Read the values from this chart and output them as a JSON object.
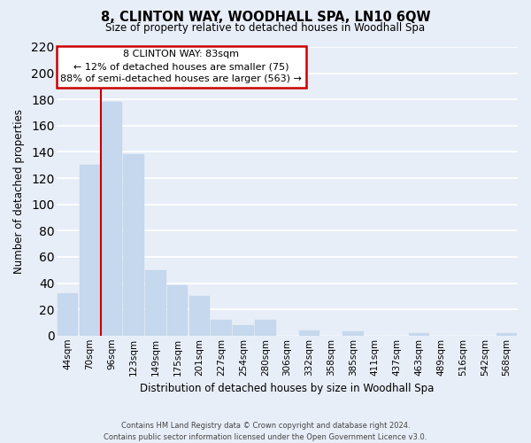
{
  "title": "8, CLINTON WAY, WOODHALL SPA, LN10 6QW",
  "subtitle": "Size of property relative to detached houses in Woodhall Spa",
  "xlabel": "Distribution of detached houses by size in Woodhall Spa",
  "ylabel": "Number of detached properties",
  "bar_color": "#c5d8ed",
  "bar_edge_color": "#c5d8ed",
  "categories": [
    "44sqm",
    "70sqm",
    "96sqm",
    "123sqm",
    "149sqm",
    "175sqm",
    "201sqm",
    "227sqm",
    "254sqm",
    "280sqm",
    "306sqm",
    "332sqm",
    "358sqm",
    "385sqm",
    "411sqm",
    "437sqm",
    "463sqm",
    "489sqm",
    "516sqm",
    "542sqm",
    "568sqm"
  ],
  "values": [
    32,
    130,
    178,
    138,
    50,
    38,
    30,
    12,
    8,
    12,
    0,
    4,
    0,
    3,
    0,
    0,
    2,
    0,
    0,
    0,
    2
  ],
  "ylim": [
    0,
    220
  ],
  "yticks": [
    0,
    20,
    40,
    60,
    80,
    100,
    120,
    140,
    160,
    180,
    200,
    220
  ],
  "marker_color": "#cc0000",
  "annotation_title": "8 CLINTON WAY: 83sqm",
  "annotation_line1": "← 12% of detached houses are smaller (75)",
  "annotation_line2": "88% of semi-detached houses are larger (563) →",
  "annotation_box_color": "#ffffff",
  "annotation_box_edge_color": "#cc0000",
  "footer_line1": "Contains HM Land Registry data © Crown copyright and database right 2024.",
  "footer_line2": "Contains public sector information licensed under the Open Government Licence v3.0.",
  "background_color": "#e8eef8",
  "grid_color": "#ffffff"
}
